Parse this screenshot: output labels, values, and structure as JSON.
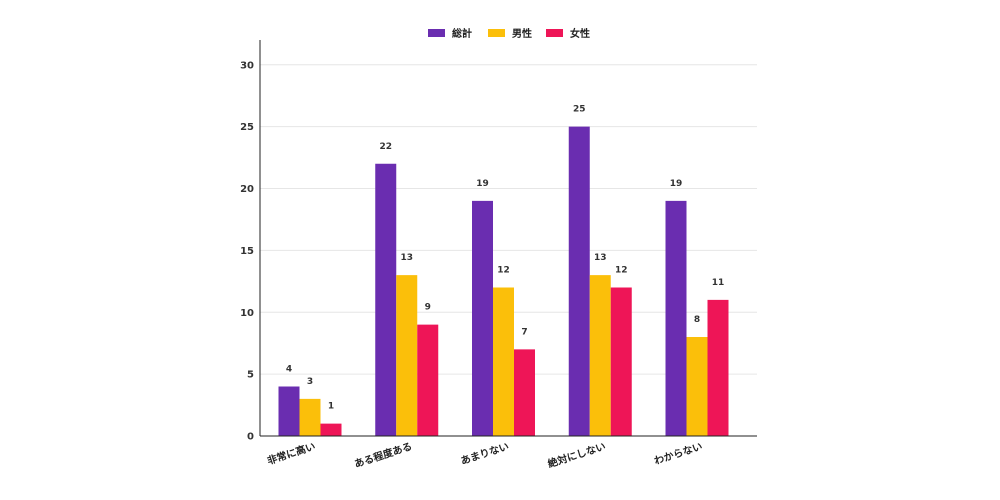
{
  "chart_data": {
    "type": "bar",
    "categories": [
      "非常に高い",
      "ある程度ある",
      "あまりない",
      "絶対にしない",
      "わからない"
    ],
    "series": [
      {
        "name": "総計",
        "color": "#6a2db0",
        "values": [
          4,
          22,
          19,
          25,
          19
        ]
      },
      {
        "name": "男性",
        "color": "#fbbf0a",
        "values": [
          3,
          13,
          12,
          13,
          8
        ]
      },
      {
        "name": "女性",
        "color": "#ee1557",
        "values": [
          1,
          9,
          7,
          12,
          11
        ]
      }
    ],
    "ylim": [
      0,
      32
    ],
    "yticks": [
      0,
      5,
      10,
      15,
      20,
      25,
      30
    ],
    "grid": true,
    "legend_position": "top-center",
    "title": "",
    "xlabel": "",
    "ylabel": ""
  }
}
